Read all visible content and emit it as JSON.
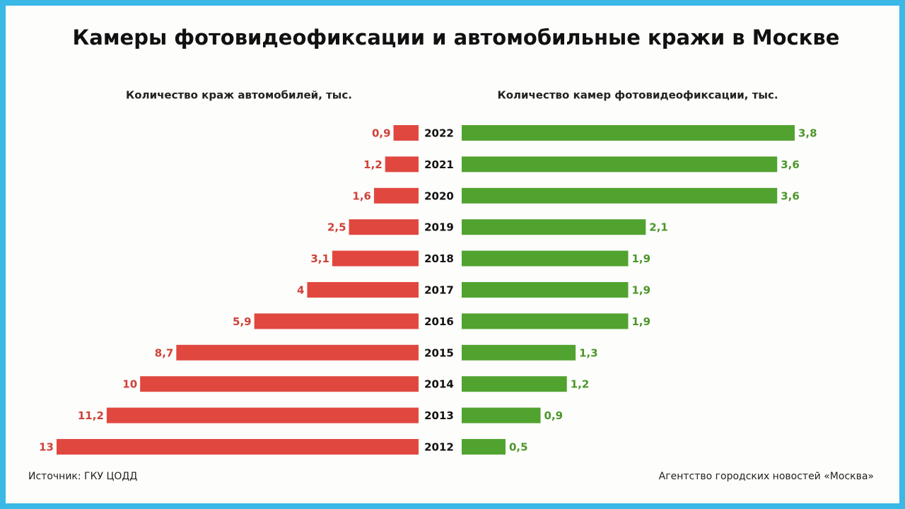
{
  "chart_data": {
    "type": "butterfly",
    "title": "Камеры фотовидеофиксации и автомобильные кражи в Москве",
    "categories": [
      "2022",
      "2021",
      "2020",
      "2019",
      "2018",
      "2017",
      "2016",
      "2015",
      "2014",
      "2013",
      "2012"
    ],
    "series": [
      {
        "name": "Количество краж автомобилей, тыс.",
        "color": "#e0483f",
        "side": "left",
        "values": [
          0.9,
          1.2,
          1.6,
          2.5,
          3.1,
          4,
          5.9,
          8.7,
          10,
          11.2,
          13
        ],
        "value_labels": [
          "0,9",
          "1,2",
          "1,6",
          "2,5",
          "3,1",
          "4",
          "5,9",
          "8,7",
          "10",
          "11,2",
          "13"
        ]
      },
      {
        "name": "Количество камер фотовидеофиксации, тыс.",
        "color": "#51a32f",
        "side": "right",
        "values": [
          3.8,
          3.6,
          3.6,
          2.1,
          1.9,
          1.9,
          1.9,
          1.3,
          1.2,
          0.9,
          0.5
        ],
        "value_labels": [
          "3,8",
          "3,6",
          "3,6",
          "2,1",
          "1,9",
          "1,9",
          "1,9",
          "1,3",
          "1,2",
          "0,9",
          "0,5"
        ]
      }
    ],
    "source": "Источник: ГКУ ЦОДД",
    "credit": "Агентство городских новостей «Москва»"
  }
}
